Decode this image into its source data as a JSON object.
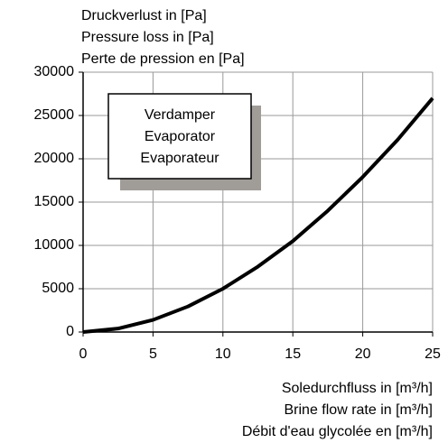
{
  "chart_data": {
    "type": "line",
    "ylabel": [
      "Druckverlust in [Pa]",
      "Pressure loss in [Pa]",
      "Perte de pression en [Pa]"
    ],
    "xlabel": [
      "Soledurchfluss in [m³/h]",
      "Brine flow rate in [m³/h]",
      "Débit d'eau glycolée en [m³/h]"
    ],
    "annotation": [
      "Verdamper",
      "Evaporator",
      "Evaporateur"
    ],
    "x": [
      0,
      2.5,
      5,
      7.5,
      10,
      12.5,
      15,
      17.5,
      20,
      22.5,
      25
    ],
    "series": [
      {
        "name": "Evaporator",
        "color": "#000000",
        "values": [
          0,
          400,
          1400,
          2950,
          5000,
          7550,
          10500,
          14000,
          17900,
          22200,
          27000
        ]
      }
    ],
    "xlim": [
      0,
      25
    ],
    "xticks": [
      0,
      5,
      10,
      15,
      20,
      25
    ],
    "ylim": [
      0,
      30000
    ],
    "yticks": [
      0,
      5000,
      10000,
      15000,
      20000,
      25000,
      30000
    ],
    "grid": true
  }
}
